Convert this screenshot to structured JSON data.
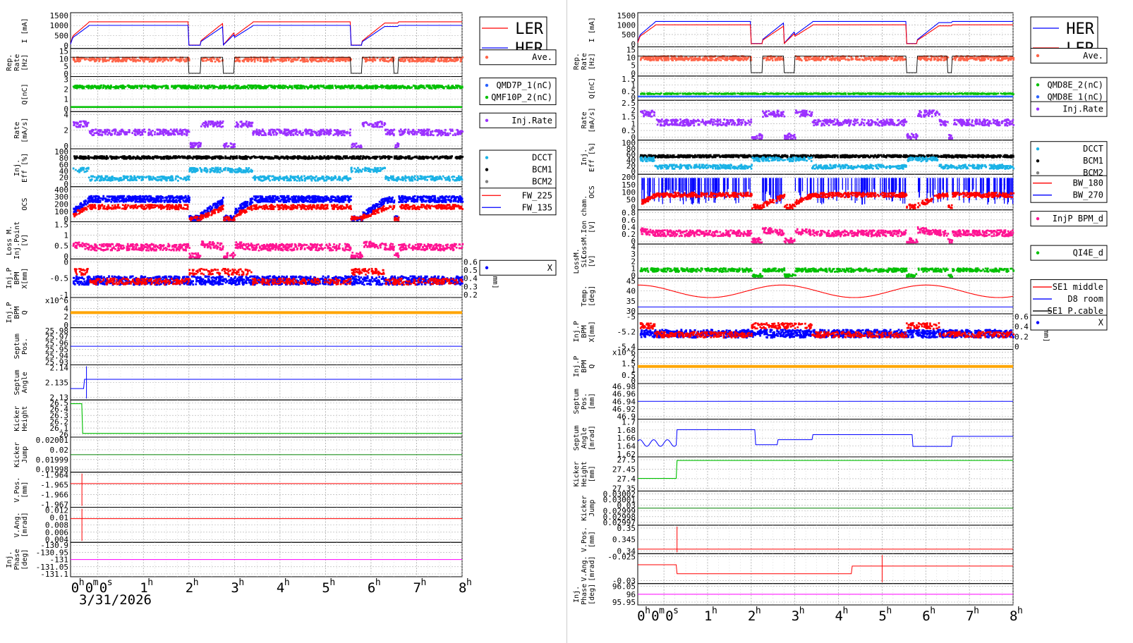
{
  "page": {
    "left_date": "3/31/2026"
  },
  "time_axis": {
    "range_h": [
      -0.6,
      8
    ],
    "ticks": [
      {
        "t": 0,
        "label": "0h0m0s"
      },
      {
        "t": 1,
        "label": "1h"
      },
      {
        "t": 2,
        "label": "2h"
      },
      {
        "t": 3,
        "label": "3h"
      },
      {
        "t": 4,
        "label": "4h"
      },
      {
        "t": 5,
        "label": "5h"
      },
      {
        "t": 6,
        "label": "6h"
      },
      {
        "t": 7,
        "label": "7h"
      },
      {
        "t": 8,
        "label": "8h"
      }
    ]
  },
  "colors": {
    "red": "#ff0000",
    "blue": "#0000ff",
    "salmon": "#ff6347",
    "green": "#00c000",
    "royal": "#2a62ff",
    "purple": "#9b30ff",
    "cyan": "#1ab2e6",
    "gray": "#7f7f7f",
    "black": "#000000",
    "pink": "#ff1493",
    "orange": "#ffa500",
    "darkgreen": "#008000",
    "magenta": "#ff00ff",
    "legendFrame": "#ff0000"
  },
  "chart_data": [
    {
      "name": "left-panel (LER)",
      "type": "line",
      "panels": [
        {
          "ylabel": [
            "I [mA]"
          ],
          "yticks": [
            "1500",
            "1000",
            "500",
            "0"
          ],
          "series": [
            {
              "name": "LER",
              "color": "red",
              "kind": "curr"
            },
            {
              "name": "HER",
              "color": "blue",
              "kind": "curr2"
            }
          ],
          "legend": [
            {
              "label": "LER",
              "color": "red",
              "big": true
            },
            {
              "label": "HER",
              "color": "blue",
              "big": true
            }
          ]
        },
        {
          "ylabel": [
            "Rep.",
            "Rate",
            "[Hz]"
          ],
          "yticks": [
            "15",
            "10",
            "5",
            "0"
          ],
          "series": [
            {
              "color": "salmon",
              "kind": "rep"
            },
            {
              "color": "black",
              "kind": "step"
            }
          ],
          "legend": [
            {
              "label": "Ave.",
              "color": "salmon",
              "dot": true
            }
          ]
        },
        {
          "ylabel": [
            "Q[nC]"
          ],
          "yticks": [
            "3",
            "2",
            "1",
            "0"
          ],
          "series": [
            {
              "color": "green",
              "kind": "qhi"
            },
            {
              "color": "green",
              "kind": "qlo"
            }
          ],
          "legend": [
            {
              "label": "QMD7P_1(nC)",
              "color": "royal",
              "dot": true
            },
            {
              "label": "QMF10P_2(nC)",
              "color": "green",
              "dot": true
            }
          ]
        },
        {
          "ylabel": [
            "Rate",
            "[mA/s]"
          ],
          "yticks": [
            "4",
            "2",
            "0"
          ],
          "series": [
            {
              "color": "purple",
              "kind": "inj"
            }
          ],
          "legend": [
            {
              "label": "Inj.Rate",
              "color": "purple",
              "dot": true
            }
          ]
        },
        {
          "ylabel": [
            "Inj.",
            "Eff [%]"
          ],
          "yticks": [
            "100",
            "80",
            "60",
            "40",
            "20",
            "0"
          ],
          "series": [
            {
              "color": "black",
              "kind": "effhi"
            },
            {
              "color": "cyan",
              "kind": "efflo"
            }
          ],
          "legend": [
            {
              "label": "DCCT",
              "color": "cyan",
              "dot": true
            },
            {
              "label": "BCM1",
              "color": "black",
              "dot": true
            },
            {
              "label": "BCM2",
              "color": "gray",
              "dot": true
            }
          ]
        },
        {
          "ylabel": [
            "OCS"
          ],
          "yticks": [
            "400",
            "300",
            "200",
            "100",
            "0"
          ],
          "series": [
            {
              "color": "blue",
              "kind": "ocs"
            },
            {
              "color": "red",
              "kind": "ocs2"
            }
          ],
          "legend": [
            {
              "label": "FW_225",
              "color": "red"
            },
            {
              "label": "FW_135",
              "color": "blue"
            }
          ]
        },
        {
          "ylabel": [
            "Loss M.",
            "Inj.Point",
            "[V]"
          ],
          "yticks": [
            "1.5",
            "1",
            "0.5",
            "0"
          ],
          "series": [
            {
              "color": "pink",
              "kind": "loss"
            }
          ],
          "legend": []
        },
        {
          "ylabel": [
            "Inj.P",
            "BPM",
            "X[mm]"
          ],
          "yticks": [
            "0",
            "-0.5",
            "-1"
          ],
          "rticks": [
            "0.6",
            "0.5",
            "0.4",
            "0.3",
            "0.2"
          ],
          "rlabel": "Y[mm]",
          "series": [
            {
              "color": "blue",
              "kind": "bpm"
            },
            {
              "color": "red",
              "kind": "bpm2"
            }
          ],
          "legend": [
            {
              "label": "X",
              "color": "blue",
              "dot": true
            }
          ]
        },
        {
          "ylabel": [
            "Inj.P",
            "BPM",
            "Q"
          ],
          "yticks": [
            "x10^6",
            "4",
            "2",
            "0"
          ],
          "series": [
            {
              "color": "orange",
              "kind": "flatband"
            }
          ],
          "legend": []
        },
        {
          "ylabel": [
            "Septum",
            "Pos."
          ],
          "yticks": [
            "25.98",
            "25.97",
            "25.96",
            "25.95",
            "25.94",
            "25.93"
          ],
          "series": [
            {
              "color": "blue",
              "kind": "flat"
            }
          ],
          "legend": []
        },
        {
          "ylabel": [
            "Septum",
            "Angle"
          ],
          "yticks": [
            "2.14",
            "2.135",
            "2.13"
          ],
          "series": [
            {
              "color": "blue",
              "kind": "angleL"
            }
          ],
          "legend": []
        },
        {
          "ylabel": [
            "Kicker",
            "Height"
          ],
          "yticks": [
            "26.5",
            "26.4",
            "26.3",
            "26.2",
            "26.1",
            "26"
          ],
          "series": [
            {
              "color": "green",
              "kind": "kickL"
            }
          ],
          "legend": []
        },
        {
          "ylabel": [
            "Kicker",
            "Jump"
          ],
          "yticks": [
            "0.02001",
            "0.02",
            "0.01999",
            "0.01998"
          ],
          "series": [
            {
              "color": "darkgreen",
              "kind": "flat"
            }
          ],
          "legend": []
        },
        {
          "ylabel": [
            "V.Pos.",
            "[mm]"
          ],
          "yticks": [
            "-1.964",
            "-1.965",
            "-1.966",
            "-1.967"
          ],
          "series": [
            {
              "color": "red",
              "kind": "spikeflat"
            }
          ],
          "legend": []
        },
        {
          "ylabel": [
            "V.Ang.",
            "[mrad]"
          ],
          "yticks": [
            "0.012",
            "0.01",
            "0.008",
            "0.006",
            "0.004"
          ],
          "series": [
            {
              "color": "red",
              "kind": "spikeflat"
            }
          ],
          "legend": []
        },
        {
          "ylabel": [
            "Inj.",
            "Phase",
            "[deg]"
          ],
          "yticks": [
            "-130.9",
            "-130.95",
            "-131",
            "-131.05",
            "-131.1"
          ],
          "series": [
            {
              "color": "magenta",
              "kind": "flat"
            }
          ],
          "legend": []
        }
      ]
    },
    {
      "name": "right-panel (HER)",
      "type": "line",
      "panels": [
        {
          "ylabel": [
            "I [mA]"
          ],
          "yticks": [
            "1500",
            "1000",
            "500",
            "0"
          ],
          "series": [
            {
              "name": "HER",
              "color": "blue",
              "kind": "curr"
            },
            {
              "name": "LER",
              "color": "red",
              "kind": "curr2"
            }
          ],
          "legend": [
            {
              "label": "HER",
              "color": "blue",
              "big": true
            },
            {
              "label": "LER",
              "color": "red",
              "big": true
            }
          ]
        },
        {
          "ylabel": [
            "Rep.",
            "Rate",
            "[Hz]"
          ],
          "yticks": [
            "15",
            "10",
            "5",
            "0"
          ],
          "series": [
            {
              "color": "salmon",
              "kind": "rep"
            },
            {
              "color": "black",
              "kind": "step"
            }
          ],
          "legend": [
            {
              "label": "Ave.",
              "color": "salmon",
              "dot": true
            }
          ]
        },
        {
          "ylabel": [
            "Q[nC]"
          ],
          "yticks": [
            "1.5",
            "1",
            "0.5",
            "0"
          ],
          "series": [
            {
              "color": "green",
              "kind": "qmid"
            },
            {
              "color": "royal",
              "kind": "qlo"
            }
          ],
          "legend": [
            {
              "label": "QMD8E_2(nC)",
              "color": "green",
              "dot": true
            },
            {
              "label": "QMD8E_1(nC)",
              "color": "royal",
              "dot": true
            }
          ]
        },
        {
          "ylabel": [
            "Rate",
            "[mA/s]"
          ],
          "yticks": [
            "2.5",
            "2",
            "1.5",
            "1",
            "0.5",
            "0"
          ],
          "series": [
            {
              "color": "purple",
              "kind": "inj"
            }
          ],
          "legend": [
            {
              "label": "Inj.Rate",
              "color": "purple",
              "dot": true
            }
          ]
        },
        {
          "ylabel": [
            "Inj.",
            "Eff [%]"
          ],
          "yticks": [
            "100",
            "80",
            "60",
            "40",
            "20",
            "0"
          ],
          "series": [
            {
              "color": "black",
              "kind": "effmid"
            },
            {
              "color": "cyan",
              "kind": "efflo"
            }
          ],
          "legend": [
            {
              "label": "DCCT",
              "color": "cyan",
              "dot": true
            },
            {
              "label": "BCM1",
              "color": "black",
              "dot": true
            },
            {
              "label": "BCM2",
              "color": "gray",
              "dot": true
            }
          ]
        },
        {
          "ylabel": [
            "OCS"
          ],
          "yticks": [
            "200",
            "150",
            "100",
            "50",
            "0"
          ],
          "series": [
            {
              "color": "blue",
              "kind": "ocsR"
            },
            {
              "color": "red",
              "kind": "ocs2"
            }
          ],
          "legend": [
            {
              "label": "BW_180",
              "color": "red"
            },
            {
              "label": "BW_270",
              "color": "blue"
            }
          ]
        },
        {
          "ylabel": [
            "LossM.Ion cham.",
            "[V]"
          ],
          "yticks": [
            "0.8",
            "0.6",
            "0.4",
            "0.2",
            "0"
          ],
          "series": [
            {
              "color": "pink",
              "kind": "loss"
            }
          ],
          "legend": [
            {
              "label": "InjP BPM_d",
              "color": "pink",
              "dot": true
            }
          ]
        },
        {
          "ylabel": [
            "LossM.",
            "SiC",
            "[V]"
          ],
          "yticks": [
            "4",
            "3",
            "2",
            "1",
            "0"
          ],
          "series": [
            {
              "color": "green",
              "kind": "sic"
            }
          ],
          "legend": [
            {
              "label": "QI4E_d",
              "color": "green",
              "dot": true
            }
          ]
        },
        {
          "ylabel": [
            "Temp.",
            "[deg]"
          ],
          "yticks": [
            "45",
            "40",
            "35",
            "30"
          ],
          "series": [
            {
              "color": "red",
              "kind": "temp"
            },
            {
              "color": "blue",
              "kind": "flatlow"
            }
          ],
          "legend": [
            {
              "label": "SE1 middle",
              "color": "red"
            },
            {
              "label": "D8 room",
              "color": "blue"
            },
            {
              "label": "SE1 P.cable",
              "color": "black"
            }
          ]
        },
        {
          "ylabel": [
            "Inj.P",
            "BPM",
            "X[mm]"
          ],
          "yticks": [
            "-5",
            "-5.2",
            "-5.4"
          ],
          "rticks": [
            "0.6",
            "0.4",
            "0.2",
            "0"
          ],
          "rlabel": "Y[mm]",
          "series": [
            {
              "color": "blue",
              "kind": "bpm"
            },
            {
              "color": "red",
              "kind": "bpm2"
            }
          ],
          "legend": [
            {
              "label": "X",
              "color": "blue",
              "dot": true
            }
          ]
        },
        {
          "ylabel": [
            "Inj.P",
            "BPM",
            "Q"
          ],
          "yticks": [
            "x10^6",
            "2",
            "1.5",
            "1",
            "0.5",
            "0"
          ],
          "series": [
            {
              "color": "orange",
              "kind": "flatband"
            }
          ],
          "legend": []
        },
        {
          "ylabel": [
            "Septum",
            "Pos.",
            "[mm]"
          ],
          "yticks": [
            "46.98",
            "46.96",
            "46.94",
            "46.92",
            "46.9"
          ],
          "series": [
            {
              "color": "blue",
              "kind": "flat"
            }
          ],
          "legend": []
        },
        {
          "ylabel": [
            "Septum",
            "Angle",
            "[mrad]"
          ],
          "yticks": [
            "1.7",
            "1.68",
            "1.66",
            "1.64",
            "1.62"
          ],
          "series": [
            {
              "color": "blue",
              "kind": "angleR"
            }
          ],
          "legend": []
        },
        {
          "ylabel": [
            "Kicker",
            "Height",
            "[mm]"
          ],
          "yticks": [
            "27.5",
            "27.45",
            "27.4",
            "27.35"
          ],
          "series": [
            {
              "color": "green",
              "kind": "kickR"
            }
          ],
          "legend": []
        },
        {
          "ylabel": [
            "Kicker",
            "Jump"
          ],
          "yticks": [
            "0.03002",
            "0.03001",
            "0.03",
            "0.02999",
            "0.02998",
            "0.02997"
          ],
          "series": [
            {
              "color": "darkgreen",
              "kind": "flat"
            }
          ],
          "legend": []
        },
        {
          "ylabel": [
            "V.Pos.",
            "[mm]"
          ],
          "yticks": [
            "0.35",
            "0.345",
            "0.34"
          ],
          "series": [
            {
              "color": "red",
              "kind": "vposR"
            }
          ],
          "legend": []
        },
        {
          "ylabel": [
            "V.Ang.",
            "[mrad]"
          ],
          "yticks": [
            "-0.025",
            "-0.03"
          ],
          "series": [
            {
              "color": "red",
              "kind": "vangR"
            }
          ],
          "legend": []
        },
        {
          "ylabel": [
            "Inj.",
            "Phase",
            "[deg]"
          ],
          "yticks": [
            "96.05",
            "96",
            "95.95"
          ],
          "series": [
            {
              "color": "magenta",
              "kind": "flat"
            }
          ],
          "legend": []
        }
      ]
    }
  ]
}
